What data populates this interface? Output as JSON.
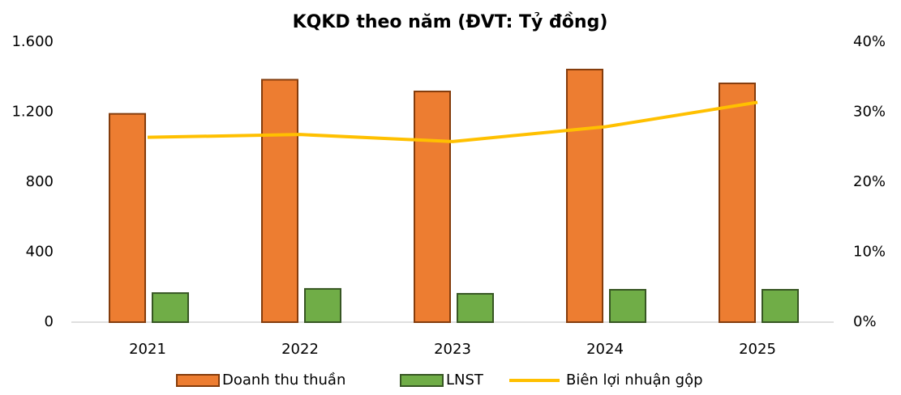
{
  "chart_data": {
    "type": "bar",
    "title": "KQKD theo năm (ĐVT: Tỷ đồng)",
    "categories": [
      "2021",
      "2022",
      "2023",
      "2024",
      "2025"
    ],
    "series": [
      {
        "name": "Doanh thu thuần",
        "type": "bar",
        "color": "#ED7D31",
        "values": [
          1190,
          1385,
          1318,
          1443,
          1364
        ]
      },
      {
        "name": "LNST",
        "type": "bar",
        "color": "#70AD47",
        "values": [
          166,
          190,
          162,
          185,
          185
        ]
      },
      {
        "name": "Biên lợi nhuận gộp",
        "type": "line",
        "axis": "y2",
        "color": "#FFC000",
        "values": [
          26.4,
          26.8,
          25.8,
          27.9,
          31.4
        ]
      }
    ],
    "ylim": [
      0,
      1600
    ],
    "yticks": [
      0,
      400,
      800,
      {
        "value": 1200,
        "label": "1.200"
      },
      {
        "value": 1600,
        "label": "1.600"
      }
    ],
    "y2lim": [
      0,
      40
    ],
    "y2ticks": [
      {
        "value": 0,
        "label": "0%"
      },
      {
        "value": 10,
        "label": "10%"
      },
      {
        "value": 20,
        "label": "20%"
      },
      {
        "value": 30,
        "label": "30%"
      },
      {
        "value": 40,
        "label": "40%"
      }
    ],
    "grid": false,
    "legend": "bottom"
  }
}
